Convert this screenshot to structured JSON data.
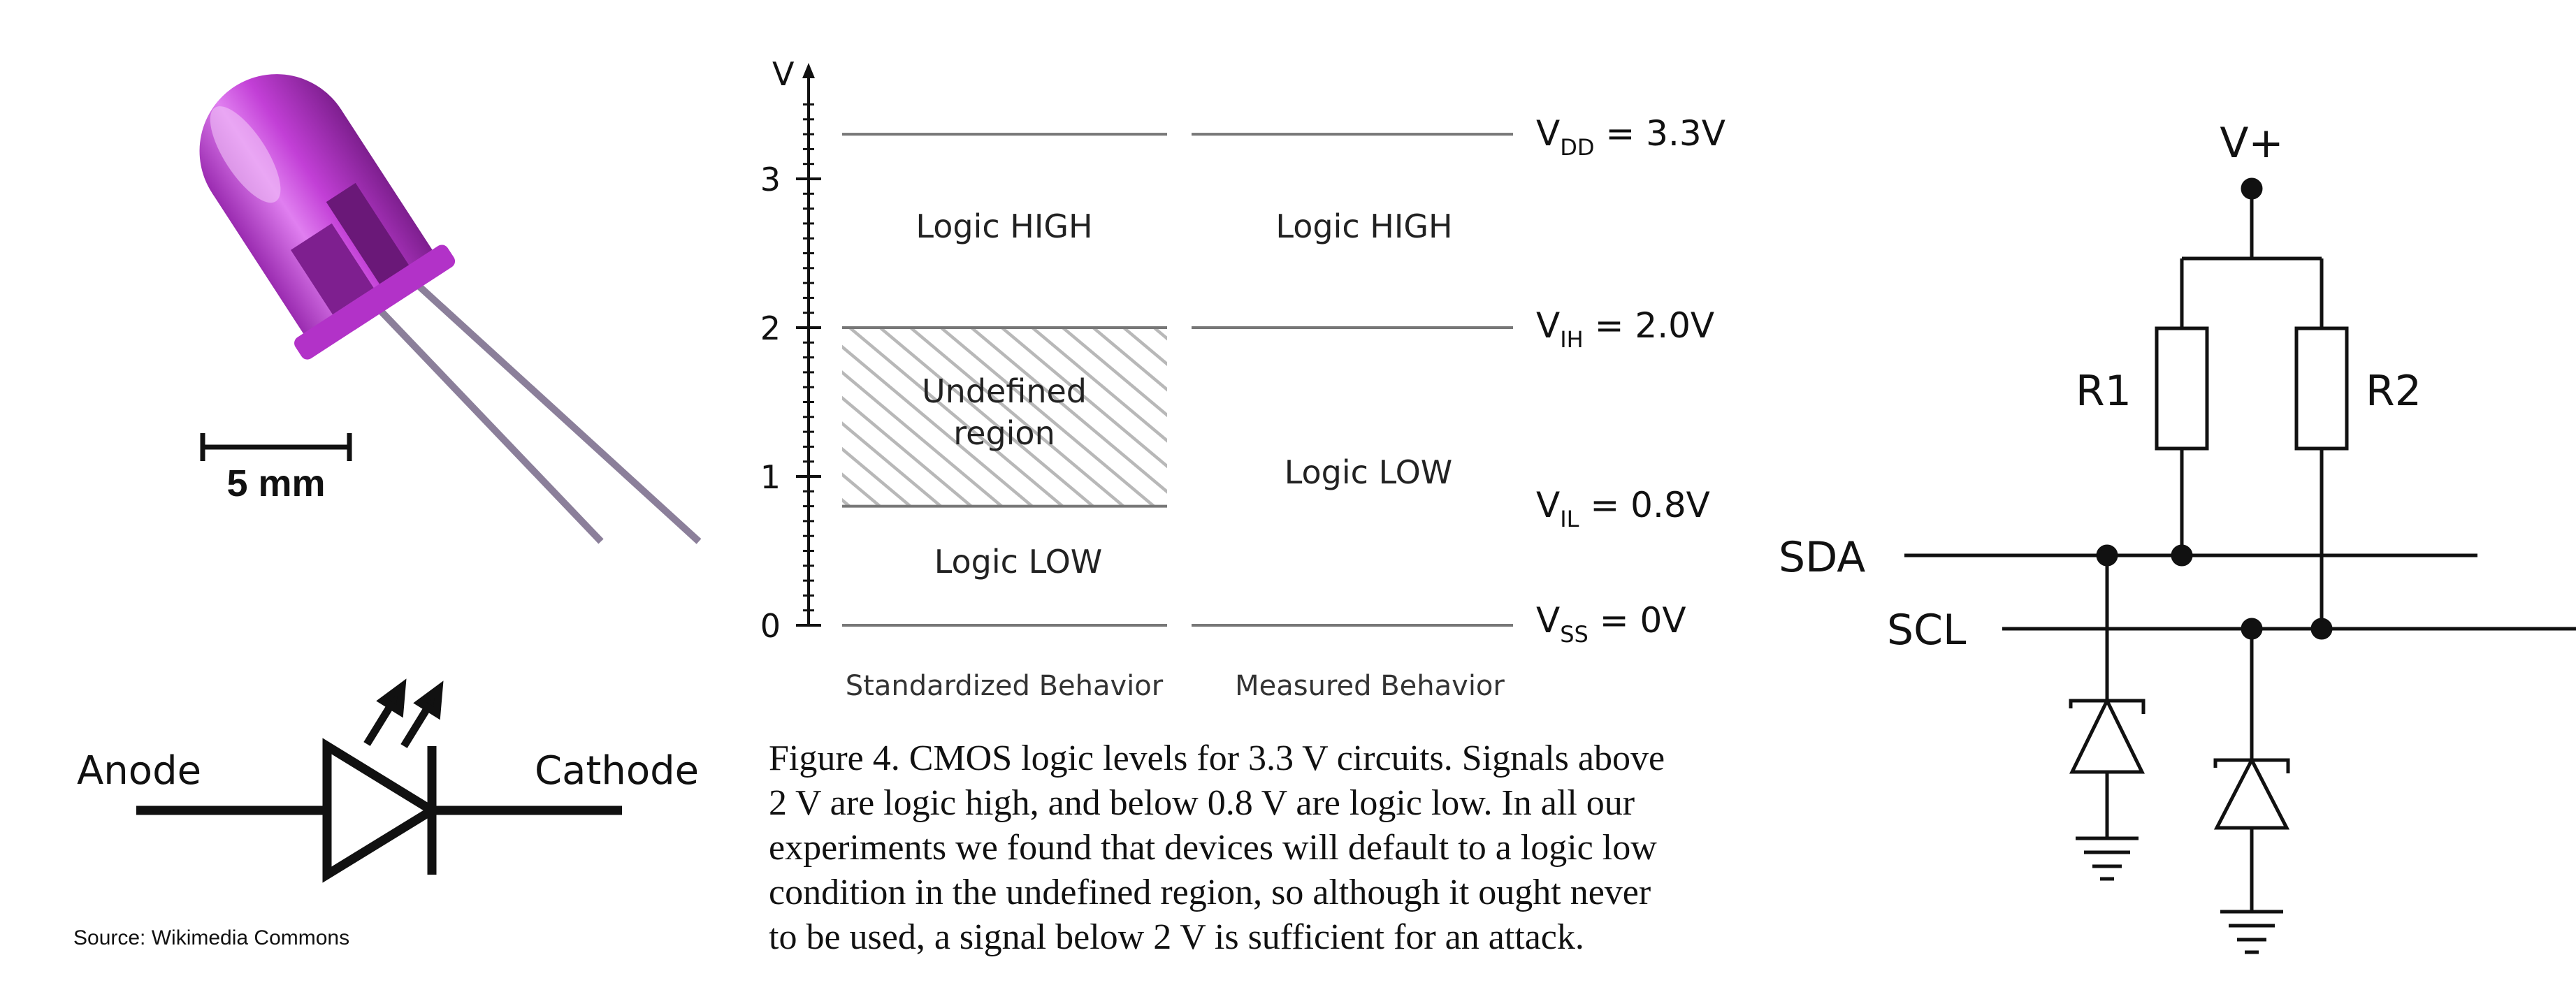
{
  "colors": {
    "led_body": "#c23fd6",
    "led_highlight": "#e8a6f0",
    "led_dark": "#7e1f8f",
    "lead": "#8b7f9a",
    "ink": "#111111",
    "grid_line": "#777777",
    "hatch": "#b8b8b8"
  },
  "led_photo": {
    "scale_label": "5 mm",
    "source": "Source: Wikimedia Commons"
  },
  "led_symbol": {
    "anode": "Anode",
    "cathode": "Cathode"
  },
  "cmos_chart": {
    "y_axis_label": "V",
    "ticks": [
      "0",
      "1",
      "2",
      "3"
    ],
    "columns": [
      "Standardized Behavior",
      "Measured Behavior"
    ],
    "regions": {
      "std_high": "Logic HIGH",
      "std_undefined_1": "Undefined",
      "std_undefined_2": "region",
      "std_low": "Logic LOW",
      "meas_high": "Logic HIGH",
      "meas_low": "Logic LOW"
    },
    "levels": [
      {
        "sym": "V",
        "sub": "DD",
        "eq": " = 3.3V"
      },
      {
        "sym": "V",
        "sub": "IH",
        "eq": " = 2.0V"
      },
      {
        "sym": "V",
        "sub": "IL",
        "eq": " = 0.8V"
      },
      {
        "sym": "V",
        "sub": "SS",
        "eq": " = 0V"
      }
    ],
    "caption": [
      "Figure 4. CMOS logic levels for 3.3 V circuits. Signals above",
      "2 V are logic high, and below 0.8 V are logic low. In all our",
      "experiments we found that devices will default to a logic low",
      "condition in the undefined region, so although it ought never",
      "to be used, a signal below 2 V is sufficient for an attack."
    ]
  },
  "chart_data": {
    "type": "table",
    "ylabel": "V",
    "ylim": [
      0,
      3.5
    ],
    "columns": [
      "Standardized Behavior",
      "Measured Behavior"
    ],
    "thresholds": [
      {
        "name": "VDD",
        "value": 3.3
      },
      {
        "name": "VIH",
        "value": 2.0
      },
      {
        "name": "VIL",
        "value": 0.8
      },
      {
        "name": "VSS",
        "value": 0.0
      }
    ],
    "standardized": [
      {
        "label": "Logic HIGH",
        "from": 2.0,
        "to": 3.3
      },
      {
        "label": "Undefined region",
        "from": 0.8,
        "to": 2.0
      },
      {
        "label": "Logic LOW",
        "from": 0.0,
        "to": 0.8
      }
    ],
    "measured": [
      {
        "label": "Logic HIGH",
        "from": 2.0,
        "to": 3.3
      },
      {
        "label": "Logic LOW",
        "from": 0.0,
        "to": 2.0
      }
    ]
  },
  "i2c_circuit": {
    "vplus": "V+",
    "r1": "R1",
    "r2": "R2",
    "sda": "SDA",
    "scl": "SCL"
  }
}
